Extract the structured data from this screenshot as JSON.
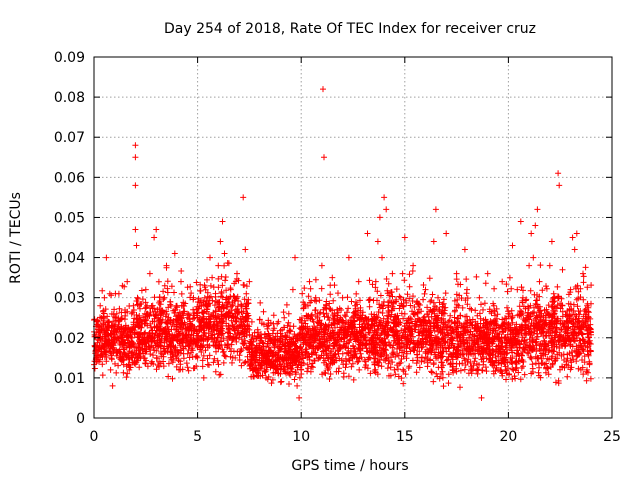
{
  "chart_data": {
    "type": "scatter",
    "title": "Day 254 of 2018, Rate Of TEC Index for receiver cruz",
    "xlabel": "GPS time / hours",
    "ylabel": "ROTI / TECUs",
    "xlim": [
      0,
      25
    ],
    "ylim": [
      0,
      0.09
    ],
    "xticks": [
      0,
      5,
      10,
      15,
      20,
      25
    ],
    "yticks": [
      0,
      0.01,
      0.02,
      0.03,
      0.04,
      0.05,
      0.06,
      0.07,
      0.08,
      0.09
    ],
    "xtick_labels": [
      "0",
      "5",
      "10",
      "15",
      "20",
      "25"
    ],
    "ytick_labels": [
      "0",
      "0.01",
      "0.02",
      "0.03",
      "0.04",
      "0.05",
      "0.06",
      "0.07",
      "0.08",
      "0.09"
    ],
    "grid": true,
    "marker": "+",
    "color": "#ff0000",
    "series": [
      {
        "name": "ROTI",
        "points": [
          [
            0.1,
            0.014
          ],
          [
            0.2,
            0.022
          ],
          [
            0.3,
            0.028
          ],
          [
            0.4,
            0.018
          ],
          [
            0.5,
            0.03
          ],
          [
            0.6,
            0.04
          ],
          [
            0.7,
            0.024
          ],
          [
            0.8,
            0.012
          ],
          [
            0.9,
            0.008
          ],
          [
            1.0,
            0.019
          ],
          [
            1.1,
            0.026
          ],
          [
            1.2,
            0.031
          ],
          [
            1.3,
            0.015
          ],
          [
            1.5,
            0.022
          ],
          [
            1.6,
            0.034
          ],
          [
            1.7,
            0.012
          ],
          [
            1.8,
            0.02
          ],
          [
            1.9,
            0.028
          ],
          [
            2.0,
            0.068
          ],
          [
            2.0,
            0.065
          ],
          [
            2.0,
            0.058
          ],
          [
            2.0,
            0.047
          ],
          [
            2.05,
            0.043
          ],
          [
            2.1,
            0.03
          ],
          [
            2.2,
            0.016
          ],
          [
            2.3,
            0.024
          ],
          [
            2.5,
            0.032
          ],
          [
            2.6,
            0.02
          ],
          [
            2.7,
            0.036
          ],
          [
            2.8,
            0.014
          ],
          [
            2.9,
            0.045
          ],
          [
            3.0,
            0.047
          ],
          [
            3.1,
            0.025
          ],
          [
            3.2,
            0.018
          ],
          [
            3.4,
            0.03
          ],
          [
            3.5,
            0.038
          ],
          [
            3.6,
            0.022
          ],
          [
            3.8,
            0.016
          ],
          [
            3.9,
            0.041
          ],
          [
            4.0,
            0.028
          ],
          [
            4.1,
            0.012
          ],
          [
            4.2,
            0.034
          ],
          [
            4.4,
            0.02
          ],
          [
            4.5,
            0.026
          ],
          [
            4.6,
            0.018
          ],
          [
            4.8,
            0.03
          ],
          [
            5.0,
            0.015
          ],
          [
            5.1,
            0.022
          ],
          [
            5.3,
            0.01
          ],
          [
            5.5,
            0.028
          ],
          [
            5.6,
            0.04
          ],
          [
            5.7,
            0.035
          ],
          [
            5.8,
            0.024
          ],
          [
            5.9,
            0.018
          ],
          [
            6.0,
            0.038
          ],
          [
            6.1,
            0.044
          ],
          [
            6.2,
            0.049
          ],
          [
            6.3,
            0.041
          ],
          [
            6.4,
            0.03
          ],
          [
            6.5,
            0.022
          ],
          [
            6.6,
            0.032
          ],
          [
            6.7,
            0.015
          ],
          [
            6.8,
            0.026
          ],
          [
            6.9,
            0.036
          ],
          [
            7.0,
            0.02
          ],
          [
            7.1,
            0.028
          ],
          [
            7.2,
            0.055
          ],
          [
            7.3,
            0.042
          ],
          [
            7.4,
            0.024
          ],
          [
            7.5,
            0.034
          ],
          [
            7.6,
            0.018
          ],
          [
            7.8,
            0.012
          ],
          [
            7.9,
            0.022
          ],
          [
            8.1,
            0.016
          ],
          [
            8.3,
            0.01
          ],
          [
            8.5,
            0.02
          ],
          [
            8.7,
            0.014
          ],
          [
            8.9,
            0.024
          ],
          [
            9.0,
            0.011
          ],
          [
            9.2,
            0.018
          ],
          [
            9.4,
            0.026
          ],
          [
            9.5,
            0.015
          ],
          [
            9.6,
            0.032
          ],
          [
            9.7,
            0.04
          ],
          [
            9.8,
            0.008
          ],
          [
            9.9,
            0.005
          ],
          [
            10.0,
            0.012
          ],
          [
            10.2,
            0.02
          ],
          [
            10.4,
            0.034
          ],
          [
            10.5,
            0.016
          ],
          [
            10.6,
            0.024
          ],
          [
            10.7,
            0.03
          ],
          [
            10.8,
            0.018
          ],
          [
            10.9,
            0.026
          ],
          [
            11.0,
            0.038
          ],
          [
            11.05,
            0.082
          ],
          [
            11.1,
            0.065
          ],
          [
            11.2,
            0.028
          ],
          [
            11.3,
            0.012
          ],
          [
            11.4,
            0.02
          ],
          [
            11.5,
            0.035
          ],
          [
            11.6,
            0.026
          ],
          [
            11.8,
            0.016
          ],
          [
            12.0,
            0.03
          ],
          [
            12.1,
            0.022
          ],
          [
            12.3,
            0.04
          ],
          [
            12.5,
            0.018
          ],
          [
            12.6,
            0.028
          ],
          [
            12.8,
            0.012
          ],
          [
            13.0,
            0.024
          ],
          [
            13.2,
            0.046
          ],
          [
            13.4,
            0.02
          ],
          [
            13.6,
            0.034
          ],
          [
            13.7,
            0.044
          ],
          [
            13.8,
            0.05
          ],
          [
            13.9,
            0.04
          ],
          [
            14.0,
            0.055
          ],
          [
            14.1,
            0.052
          ],
          [
            14.2,
            0.028
          ],
          [
            14.3,
            0.018
          ],
          [
            14.4,
            0.036
          ],
          [
            14.5,
            0.012
          ],
          [
            14.6,
            0.024
          ],
          [
            14.8,
            0.03
          ],
          [
            15.0,
            0.045
          ],
          [
            15.1,
            0.016
          ],
          [
            15.3,
            0.022
          ],
          [
            15.4,
            0.038
          ],
          [
            15.6,
            0.026
          ],
          [
            15.8,
            0.014
          ],
          [
            16.0,
            0.032
          ],
          [
            16.2,
            0.02
          ],
          [
            16.4,
            0.044
          ],
          [
            16.5,
            0.052
          ],
          [
            16.6,
            0.03
          ],
          [
            16.8,
            0.018
          ],
          [
            17.0,
            0.046
          ],
          [
            17.1,
            0.024
          ],
          [
            17.3,
            0.012
          ],
          [
            17.5,
            0.036
          ],
          [
            17.6,
            0.028
          ],
          [
            17.8,
            0.02
          ],
          [
            17.9,
            0.042
          ],
          [
            18.0,
            0.032
          ],
          [
            18.2,
            0.016
          ],
          [
            18.4,
            0.024
          ],
          [
            18.6,
            0.03
          ],
          [
            18.7,
            0.005
          ],
          [
            18.8,
            0.014
          ],
          [
            19.0,
            0.036
          ],
          [
            19.1,
            0.02
          ],
          [
            19.3,
            0.028
          ],
          [
            19.5,
            0.012
          ],
          [
            19.7,
            0.034
          ],
          [
            19.9,
            0.018
          ],
          [
            20.0,
            0.026
          ],
          [
            20.2,
            0.043
          ],
          [
            20.4,
            0.016
          ],
          [
            20.6,
            0.049
          ],
          [
            20.7,
            0.03
          ],
          [
            20.8,
            0.022
          ],
          [
            21.0,
            0.038
          ],
          [
            21.1,
            0.046
          ],
          [
            21.2,
            0.04
          ],
          [
            21.3,
            0.048
          ],
          [
            21.4,
            0.052
          ],
          [
            21.5,
            0.034
          ],
          [
            21.6,
            0.026
          ],
          [
            21.8,
            0.018
          ],
          [
            22.0,
            0.038
          ],
          [
            22.1,
            0.044
          ],
          [
            22.2,
            0.03
          ],
          [
            22.4,
            0.061
          ],
          [
            22.45,
            0.058
          ],
          [
            22.5,
            0.02
          ],
          [
            22.6,
            0.028
          ],
          [
            22.8,
            0.014
          ],
          [
            23.0,
            0.032
          ],
          [
            23.1,
            0.045
          ],
          [
            23.2,
            0.042
          ],
          [
            23.3,
            0.046
          ],
          [
            23.4,
            0.024
          ],
          [
            23.5,
            0.012
          ],
          [
            23.6,
            0.036
          ],
          [
            23.7,
            0.018
          ],
          [
            23.8,
            0.022
          ],
          [
            23.9,
            0.014
          ]
        ],
        "dense_bands": [
          {
            "x_range": [
              0.0,
              2.0
            ],
            "y_center": 0.019,
            "y_spread": 0.008
          },
          {
            "x_range": [
              2.0,
              5.0
            ],
            "y_center": 0.021,
            "y_spread": 0.009
          },
          {
            "x_range": [
              5.0,
              7.5
            ],
            "y_center": 0.023,
            "y_spread": 0.01
          },
          {
            "x_range": [
              7.5,
              10.0
            ],
            "y_center": 0.016,
            "y_spread": 0.007
          },
          {
            "x_range": [
              10.0,
              12.5
            ],
            "y_center": 0.02,
            "y_spread": 0.009
          },
          {
            "x_range": [
              12.5,
              17.0
            ],
            "y_center": 0.021,
            "y_spread": 0.01
          },
          {
            "x_range": [
              17.0,
              20.5
            ],
            "y_center": 0.019,
            "y_spread": 0.009
          },
          {
            "x_range": [
              20.5,
              24.0
            ],
            "y_center": 0.021,
            "y_spread": 0.01
          }
        ]
      }
    ]
  }
}
